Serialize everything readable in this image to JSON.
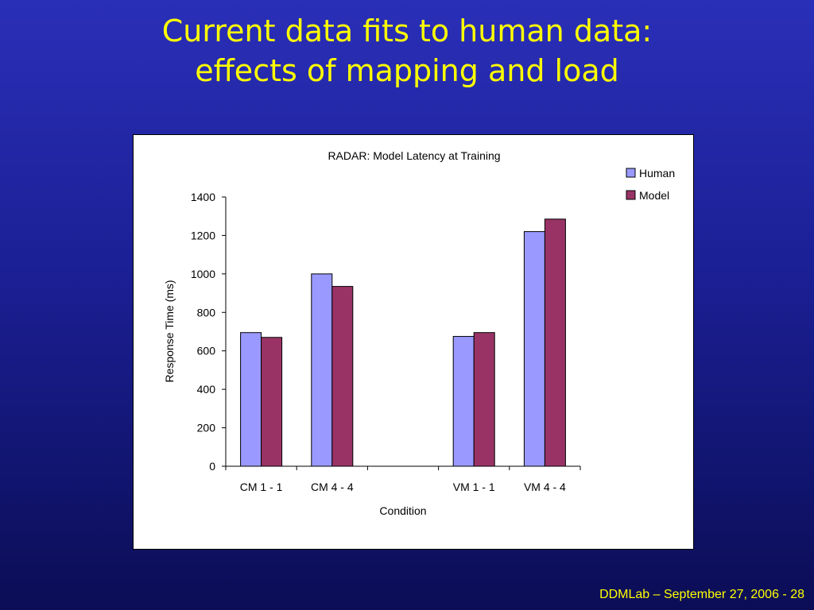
{
  "slide": {
    "title_lines": [
      "Current data fits to human data:",
      "effects of mapping and load"
    ],
    "footer": "DDMLab – September 27, 2006 - 28",
    "background_color": "#1b1f94",
    "title_color": "#ffff00"
  },
  "chart_data": {
    "type": "bar",
    "title": "RADAR: Model Latency at Training",
    "xlabel": "Condition",
    "ylabel": "Response Time (ms)",
    "categories": [
      "CM 1 - 1",
      "CM 4 - 4",
      "",
      "VM 1 - 1",
      "VM 4 - 4"
    ],
    "series": [
      {
        "name": "Human",
        "color": "#9999ff",
        "values": [
          695,
          1000,
          null,
          675,
          1220
        ]
      },
      {
        "name": "Model",
        "color": "#993366",
        "values": [
          670,
          935,
          null,
          695,
          1285
        ]
      }
    ],
    "ylim": [
      0,
      1400
    ],
    "yticks": [
      0,
      200,
      400,
      600,
      800,
      1000,
      1200,
      1400
    ],
    "grid": false,
    "legend": "top-right"
  }
}
